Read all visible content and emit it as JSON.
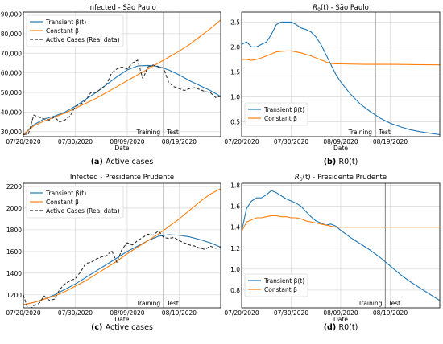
{
  "chart_data": [
    {
      "type": "line",
      "title": "Infected - São Paulo",
      "xlabel": "Date",
      "ylabel": "",
      "caption_label": "(a)",
      "caption_text": "Active cases",
      "x_ticks": [
        "07/20/2020",
        "07/30/2020",
        "08/09/2020",
        "08/19/2020"
      ],
      "xlim": [
        0,
        38
      ],
      "x_tick_positions": [
        0,
        10,
        20,
        30
      ],
      "ylim": [
        27500,
        91000
      ],
      "y_ticks": [
        30000,
        40000,
        50000,
        60000,
        70000,
        80000,
        90000
      ],
      "y_tick_labels": [
        "30,000",
        "40,000",
        "50,000",
        "60,000",
        "70,000",
        "80,000",
        "90,000"
      ],
      "grid": true,
      "legend_position": "top-left",
      "split_x": 27,
      "split_labels": [
        "Training",
        "Test"
      ],
      "series": [
        {
          "name": "Transient β(t)",
          "color": "#1f77b4",
          "style": "solid",
          "x": [
            0,
            2,
            4,
            6,
            8,
            10,
            12,
            14,
            16,
            18,
            20,
            22,
            24,
            26,
            28,
            30,
            32,
            34,
            36,
            38
          ],
          "y": [
            28500,
            33500,
            36500,
            38000,
            40000,
            43000,
            46500,
            50000,
            54000,
            58000,
            61500,
            63500,
            63800,
            63300,
            61500,
            59000,
            56000,
            53500,
            51000,
            48000
          ]
        },
        {
          "name": "Constant β",
          "color": "#ff7f0e",
          "style": "solid",
          "x": [
            0,
            2,
            4,
            6,
            8,
            10,
            12,
            14,
            16,
            18,
            20,
            22,
            24,
            26,
            28,
            30,
            32,
            34,
            36,
            38
          ],
          "y": [
            28500,
            33000,
            35500,
            37500,
            39500,
            42000,
            44500,
            47000,
            50000,
            53000,
            56000,
            59000,
            62000,
            65000,
            68000,
            71000,
            74500,
            78500,
            82500,
            87000
          ]
        },
        {
          "name": "Active Cases (Real data)",
          "color": "#333333",
          "style": "dashed",
          "x": [
            0,
            1,
            2,
            3,
            4,
            5,
            6,
            7,
            8,
            9,
            10,
            11,
            12,
            13,
            14,
            15,
            16,
            17,
            18,
            19,
            20,
            21,
            22,
            23,
            24,
            25,
            26,
            27,
            28,
            29,
            30,
            31,
            32,
            33,
            34,
            35,
            36,
            37,
            38
          ],
          "y": [
            28500,
            29000,
            38500,
            37500,
            36500,
            36000,
            37500,
            35000,
            36000,
            38000,
            43000,
            44000,
            46000,
            50000,
            50000,
            52000,
            54000,
            60000,
            62000,
            63000,
            62000,
            65000,
            66500,
            57000,
            63000,
            64000,
            63000,
            62500,
            55000,
            53000,
            52000,
            51000,
            52000,
            52500,
            51500,
            50500,
            50000,
            47500,
            48000
          ]
        }
      ]
    },
    {
      "type": "line",
      "title": "R0(t) - São Paulo",
      "title_parts": {
        "prefix": "R",
        "sub": "0",
        "suffix": "(t) - São Paulo"
      },
      "xlabel": "Date",
      "ylabel": "",
      "caption_label": "(b)",
      "caption_text": "R0(t)",
      "x_ticks": [
        "07/20/2020",
        "07/30/2020",
        "08/09/2020",
        "08/19/2020"
      ],
      "xlim": [
        0,
        40
      ],
      "x_tick_positions": [
        0,
        10,
        20,
        30
      ],
      "ylim": [
        0.2,
        2.7
      ],
      "y_ticks": [
        0.5,
        1.0,
        1.5,
        2.0,
        2.5
      ],
      "y_tick_labels": [
        "0.5",
        "1.0",
        "1.5",
        "2.0",
        "2.5"
      ],
      "grid": true,
      "legend_position": "bottom-left",
      "split_x": 27,
      "split_labels": [
        "Training",
        "Test"
      ],
      "series": [
        {
          "name": "Transient β(t)",
          "color": "#1f77b4",
          "style": "solid",
          "x": [
            0,
            1,
            2,
            3,
            4,
            5,
            6,
            7,
            8,
            9,
            10,
            11,
            12,
            13,
            14,
            15,
            16,
            17,
            18,
            19,
            20,
            22,
            24,
            26,
            28,
            30,
            32,
            34,
            36,
            38,
            40
          ],
          "y": [
            2.05,
            2.1,
            2.0,
            2.0,
            2.05,
            2.1,
            2.25,
            2.45,
            2.5,
            2.5,
            2.5,
            2.45,
            2.38,
            2.35,
            2.3,
            2.2,
            2.05,
            1.85,
            1.65,
            1.45,
            1.3,
            1.05,
            0.85,
            0.7,
            0.57,
            0.47,
            0.4,
            0.34,
            0.3,
            0.27,
            0.24
          ]
        },
        {
          "name": "Constant β",
          "color": "#ff7f0e",
          "style": "solid",
          "x": [
            0,
            1,
            2,
            3,
            4,
            5,
            6,
            7,
            8,
            9,
            10,
            11,
            12,
            13,
            14,
            15,
            16,
            17,
            18,
            19,
            20,
            25,
            30,
            35,
            40
          ],
          "y": [
            1.75,
            1.75,
            1.73,
            1.75,
            1.78,
            1.82,
            1.86,
            1.9,
            1.91,
            1.92,
            1.92,
            1.9,
            1.88,
            1.85,
            1.82,
            1.78,
            1.74,
            1.7,
            1.67,
            1.66,
            1.66,
            1.65,
            1.65,
            1.645,
            1.64
          ]
        }
      ]
    },
    {
      "type": "line",
      "title": "Infected - Presidente Prudente",
      "xlabel": "Date",
      "ylabel": "",
      "caption_label": "(c)",
      "caption_text": "Active cases",
      "x_ticks": [
        "07/20/2020",
        "07/30/2020",
        "08/09/2020",
        "08/19/2020"
      ],
      "xlim": [
        0,
        38
      ],
      "x_tick_positions": [
        0,
        10,
        20,
        30
      ],
      "ylim": [
        1080,
        2230
      ],
      "y_ticks": [
        1200,
        1400,
        1600,
        1800,
        2000,
        2200
      ],
      "y_tick_labels": [
        "1200",
        "1400",
        "1600",
        "1800",
        "2000",
        "2200"
      ],
      "grid": true,
      "legend_position": "top-left",
      "split_x": 27,
      "split_labels": [
        "Training",
        "Test"
      ],
      "series": [
        {
          "name": "Transient β(t)",
          "color": "#1f77b4",
          "style": "solid",
          "x": [
            0,
            2,
            4,
            6,
            8,
            10,
            12,
            14,
            16,
            18,
            20,
            22,
            24,
            26,
            28,
            30,
            32,
            34,
            36,
            38
          ],
          "y": [
            1110,
            1130,
            1160,
            1200,
            1250,
            1300,
            1360,
            1420,
            1480,
            1540,
            1600,
            1650,
            1700,
            1740,
            1755,
            1750,
            1735,
            1710,
            1680,
            1640
          ]
        },
        {
          "name": "Constant β",
          "color": "#ff7f0e",
          "style": "solid",
          "x": [
            0,
            2,
            4,
            6,
            8,
            10,
            12,
            14,
            16,
            18,
            20,
            22,
            24,
            26,
            28,
            30,
            32,
            34,
            36,
            38
          ],
          "y": [
            1110,
            1130,
            1160,
            1190,
            1230,
            1280,
            1330,
            1390,
            1450,
            1510,
            1580,
            1640,
            1700,
            1760,
            1830,
            1900,
            1980,
            2060,
            2130,
            2180
          ]
        },
        {
          "name": "Active Cases (Real data)",
          "color": "#333333",
          "style": "dashed",
          "x": [
            0,
            1,
            2,
            3,
            4,
            5,
            6,
            7,
            8,
            9,
            10,
            11,
            12,
            13,
            14,
            15,
            16,
            17,
            18,
            19,
            20,
            21,
            22,
            23,
            24,
            25,
            26,
            27,
            28,
            29,
            30,
            31,
            32,
            33,
            34,
            35,
            36,
            37,
            38
          ],
          "y": [
            1200,
            1050,
            1100,
            1120,
            1190,
            1150,
            1160,
            1250,
            1300,
            1330,
            1350,
            1410,
            1490,
            1500,
            1530,
            1550,
            1560,
            1610,
            1500,
            1620,
            1680,
            1660,
            1700,
            1730,
            1760,
            1750,
            1790,
            1730,
            1720,
            1730,
            1700,
            1680,
            1660,
            1650,
            1630,
            1620,
            1650,
            1630,
            1640
          ]
        }
      ]
    },
    {
      "type": "line",
      "title": "R0(t) - Presidente Prudente",
      "title_parts": {
        "prefix": "R",
        "sub": "0",
        "suffix": "(t) - Presidente Prudente"
      },
      "xlabel": "Date",
      "ylabel": "",
      "caption_label": "(d)",
      "caption_text": "R0(t)",
      "x_ticks": [
        "07/20/2020",
        "07/30/2020",
        "08/09/2020",
        "08/19/2020"
      ],
      "xlim": [
        0,
        40
      ],
      "x_tick_positions": [
        0,
        10,
        20,
        30
      ],
      "ylim": [
        0.63,
        1.82
      ],
      "y_ticks": [
        0.8,
        1.0,
        1.2,
        1.4,
        1.6,
        1.8
      ],
      "y_tick_labels": [
        "0.8",
        "1.0",
        "1.2",
        "1.4",
        "1.6",
        "1.8"
      ],
      "grid": true,
      "legend_position": "bottom-left",
      "split_x": 29,
      "split_labels": [
        "Training",
        "Test"
      ],
      "series": [
        {
          "name": "Transient β(t)",
          "color": "#1f77b4",
          "style": "solid",
          "x": [
            0,
            1,
            2,
            3,
            4,
            5,
            6,
            7,
            8,
            9,
            10,
            11,
            12,
            13,
            14,
            15,
            16,
            17,
            18,
            19,
            20,
            22,
            24,
            26,
            28,
            30,
            32,
            34,
            36,
            38,
            40
          ],
          "y": [
            1.36,
            1.58,
            1.65,
            1.68,
            1.68,
            1.71,
            1.75,
            1.73,
            1.7,
            1.67,
            1.65,
            1.63,
            1.6,
            1.55,
            1.5,
            1.46,
            1.44,
            1.42,
            1.43,
            1.41,
            1.37,
            1.3,
            1.24,
            1.18,
            1.11,
            1.03,
            0.95,
            0.88,
            0.82,
            0.76,
            0.7
          ]
        },
        {
          "name": "Constant β",
          "color": "#ff7f0e",
          "style": "solid",
          "x": [
            0,
            1,
            2,
            3,
            4,
            5,
            6,
            7,
            8,
            9,
            10,
            11,
            12,
            13,
            14,
            15,
            16,
            17,
            18,
            19,
            20,
            25,
            30,
            35,
            40
          ],
          "y": [
            1.36,
            1.45,
            1.47,
            1.49,
            1.49,
            1.5,
            1.51,
            1.51,
            1.5,
            1.5,
            1.49,
            1.49,
            1.48,
            1.46,
            1.45,
            1.44,
            1.43,
            1.42,
            1.41,
            1.4,
            1.4,
            1.4,
            1.4,
            1.4,
            1.4
          ]
        }
      ]
    }
  ]
}
